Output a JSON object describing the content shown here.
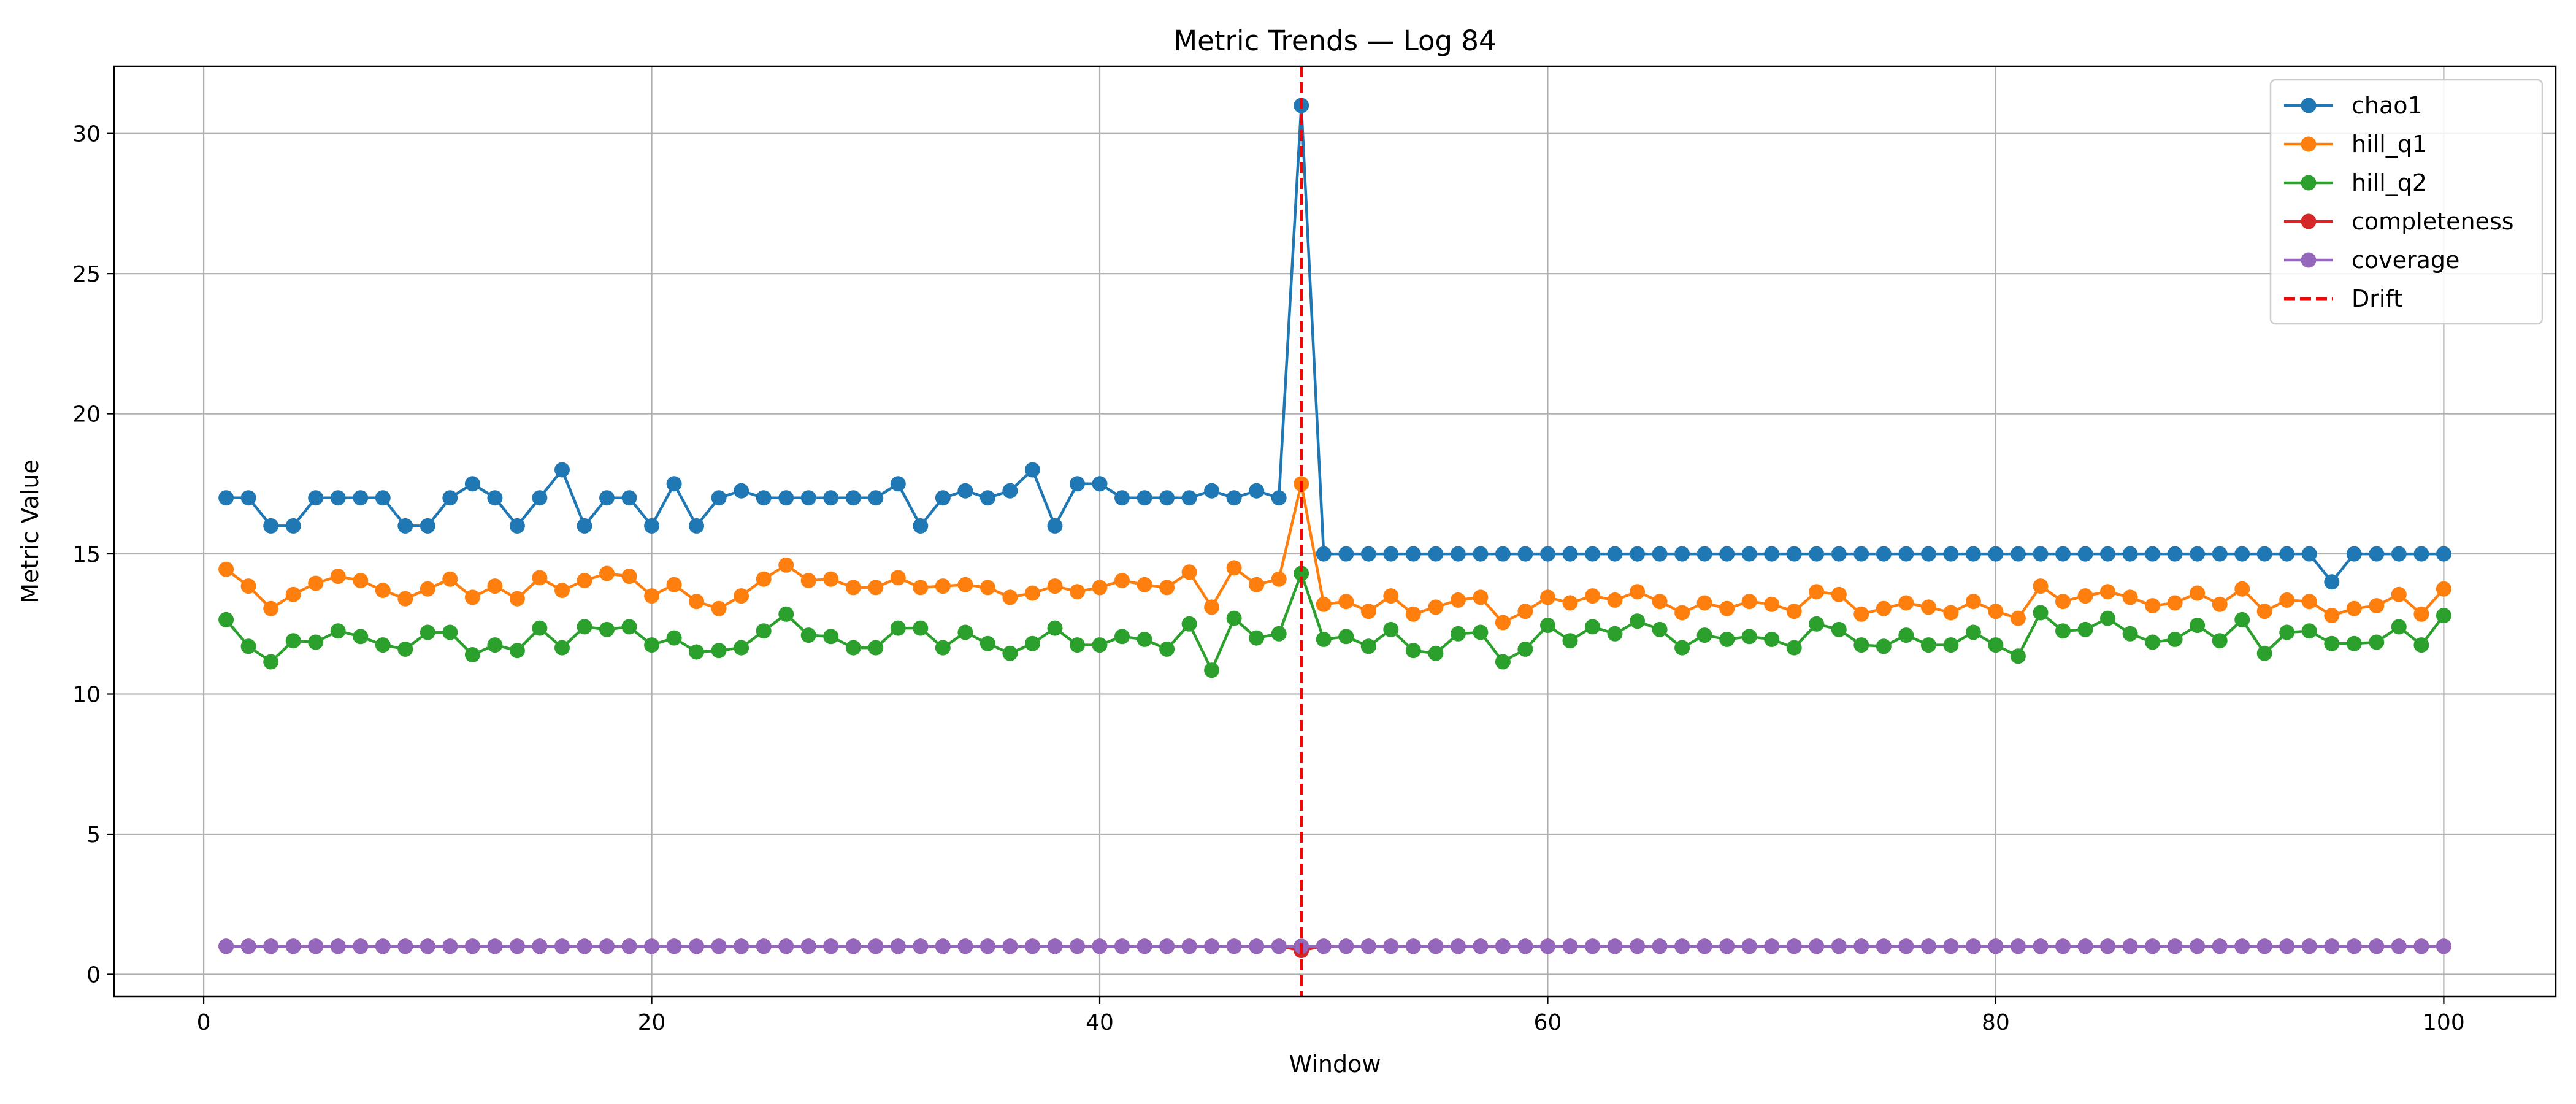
{
  "chart_data": {
    "type": "line",
    "title": "Metric Trends — Log 84",
    "xlabel": "Window",
    "ylabel": "Metric Value",
    "xlim": [
      -4,
      105
    ],
    "ylim": [
      -0.8,
      32.4
    ],
    "xticks": [
      0,
      20,
      40,
      60,
      80,
      100
    ],
    "yticks": [
      0,
      5,
      10,
      15,
      20,
      25,
      30
    ],
    "grid": true,
    "legend_position": "top-right",
    "x": [
      1,
      2,
      3,
      4,
      5,
      6,
      7,
      8,
      9,
      10,
      11,
      12,
      13,
      14,
      15,
      16,
      17,
      18,
      19,
      20,
      21,
      22,
      23,
      24,
      25,
      26,
      27,
      28,
      29,
      30,
      31,
      32,
      33,
      34,
      35,
      36,
      37,
      38,
      39,
      40,
      41,
      42,
      43,
      44,
      45,
      46,
      47,
      48,
      49,
      50,
      51,
      52,
      53,
      54,
      55,
      56,
      57,
      58,
      59,
      60,
      61,
      62,
      63,
      64,
      65,
      66,
      67,
      68,
      69,
      70,
      71,
      72,
      73,
      74,
      75,
      76,
      77,
      78,
      79,
      80,
      81,
      82,
      83,
      84,
      85,
      86,
      87,
      88,
      89,
      90,
      91,
      92,
      93,
      94,
      95,
      96,
      97,
      98,
      99,
      100
    ],
    "series": [
      {
        "name": "chao1",
        "color": "#1f77b4",
        "values": [
          17,
          17,
          16,
          16,
          17,
          17,
          17,
          17,
          16,
          16,
          17,
          17.5,
          17,
          16,
          17,
          18,
          16,
          17,
          17,
          16,
          17.5,
          16,
          17,
          17.25,
          17,
          17,
          17,
          17,
          17,
          17,
          17.5,
          16,
          17,
          17.25,
          17,
          17.25,
          18,
          16,
          17.5,
          17.5,
          17,
          17,
          17,
          17,
          17.25,
          17,
          17.25,
          17,
          31,
          15,
          15,
          15,
          15,
          15,
          15,
          15,
          15,
          15,
          15,
          15,
          15,
          15,
          15,
          15,
          15,
          15,
          15,
          15,
          15,
          15,
          15,
          15,
          15,
          15,
          15,
          15,
          15,
          15,
          15,
          15,
          15,
          15,
          15,
          15,
          15,
          15,
          15,
          15,
          15,
          15,
          15,
          15,
          15,
          15,
          14,
          15,
          15,
          15,
          15,
          15
        ]
      },
      {
        "name": "hill_q1",
        "color": "#ff7f0e",
        "values": [
          14.45,
          13.85,
          13.05,
          13.55,
          13.95,
          14.2,
          14.05,
          13.7,
          13.4,
          13.75,
          14.1,
          13.45,
          13.85,
          13.4,
          14.15,
          13.7,
          14.05,
          14.3,
          14.2,
          13.5,
          13.9,
          13.3,
          13.05,
          13.5,
          14.1,
          14.6,
          14.05,
          14.1,
          13.8,
          13.8,
          14.15,
          13.8,
          13.85,
          13.9,
          13.8,
          13.45,
          13.6,
          13.85,
          13.65,
          13.8,
          14.05,
          13.9,
          13.8,
          14.35,
          13.1,
          14.5,
          13.9,
          14.1,
          17.5,
          13.2,
          13.3,
          12.95,
          13.5,
          12.85,
          13.1,
          13.35,
          13.45,
          12.55,
          12.95,
          13.45,
          13.25,
          13.5,
          13.35,
          13.65,
          13.3,
          12.9,
          13.25,
          13.05,
          13.3,
          13.2,
          12.95,
          13.65,
          13.55,
          12.85,
          13.05,
          13.25,
          13.1,
          12.9,
          13.3,
          12.95,
          12.7,
          13.85,
          13.3,
          13.5,
          13.65,
          13.45,
          13.15,
          13.25,
          13.6,
          13.2,
          13.75,
          12.95,
          13.35,
          13.3,
          12.8,
          13.05,
          13.15,
          13.55,
          12.85,
          13.75
        ]
      },
      {
        "name": "hill_q2",
        "color": "#2ca02c",
        "values": [
          12.65,
          11.7,
          11.15,
          11.9,
          11.85,
          12.25,
          12.05,
          11.75,
          11.6,
          12.2,
          12.2,
          11.4,
          11.75,
          11.55,
          12.35,
          11.65,
          12.4,
          12.3,
          12.4,
          11.75,
          12,
          11.5,
          11.55,
          11.65,
          12.25,
          12.85,
          12.1,
          12.05,
          11.65,
          11.65,
          12.35,
          12.35,
          11.65,
          12.2,
          11.8,
          11.45,
          11.8,
          12.35,
          11.75,
          11.75,
          12.05,
          11.95,
          11.6,
          12.5,
          10.85,
          12.7,
          12,
          12.15,
          14.3,
          11.95,
          12.05,
          11.7,
          12.3,
          11.55,
          11.45,
          12.15,
          12.2,
          11.15,
          11.6,
          12.45,
          11.9,
          12.4,
          12.15,
          12.6,
          12.3,
          11.65,
          12.1,
          11.95,
          12.05,
          11.95,
          11.65,
          12.5,
          12.3,
          11.75,
          11.7,
          12.1,
          11.75,
          11.75,
          12.2,
          11.75,
          11.35,
          12.9,
          12.25,
          12.3,
          12.7,
          12.15,
          11.85,
          11.95,
          12.45,
          11.9,
          12.65,
          11.45,
          12.2,
          12.25,
          11.8,
          11.8,
          11.85,
          12.4,
          11.75,
          12.8
        ]
      },
      {
        "name": "completeness",
        "color": "#d62728",
        "values": [
          1,
          1,
          1,
          1,
          1,
          1,
          1,
          1,
          1,
          1,
          1,
          1,
          1,
          1,
          1,
          1,
          1,
          1,
          1,
          1,
          1,
          1,
          1,
          1,
          1,
          1,
          1,
          1,
          1,
          1,
          1,
          1,
          1,
          1,
          1,
          1,
          1,
          1,
          1,
          1,
          1,
          1,
          1,
          1,
          1,
          1,
          1,
          1,
          0.85,
          1,
          1,
          1,
          1,
          1,
          1,
          1,
          1,
          1,
          1,
          1,
          1,
          1,
          1,
          1,
          1,
          1,
          1,
          1,
          1,
          1,
          1,
          1,
          1,
          1,
          1,
          1,
          1,
          1,
          1,
          1,
          1,
          1,
          1,
          1,
          1,
          1,
          1,
          1,
          1,
          1,
          1,
          1,
          1,
          1,
          1,
          1,
          1,
          1,
          1,
          1
        ]
      },
      {
        "name": "coverage",
        "color": "#9467bd",
        "values": [
          1,
          1,
          1,
          1,
          1,
          1,
          1,
          1,
          1,
          1,
          1,
          1,
          1,
          1,
          1,
          1,
          1,
          1,
          1,
          1,
          1,
          1,
          1,
          1,
          1,
          1,
          1,
          1,
          1,
          1,
          1,
          1,
          1,
          1,
          1,
          1,
          1,
          1,
          1,
          1,
          1,
          1,
          1,
          1,
          1,
          1,
          1,
          1,
          1,
          1,
          1,
          1,
          1,
          1,
          1,
          1,
          1,
          1,
          1,
          1,
          1,
          1,
          1,
          1,
          1,
          1,
          1,
          1,
          1,
          1,
          1,
          1,
          1,
          1,
          1,
          1,
          1,
          1,
          1,
          1,
          1,
          1,
          1,
          1,
          1,
          1,
          1,
          1,
          1,
          1,
          1,
          1,
          1,
          1,
          1,
          1,
          1,
          1,
          1,
          1
        ]
      }
    ],
    "annotations": [
      {
        "type": "vline",
        "x": 49,
        "name": "Drift",
        "color": "#ff0000",
        "style": "dashed"
      }
    ]
  }
}
